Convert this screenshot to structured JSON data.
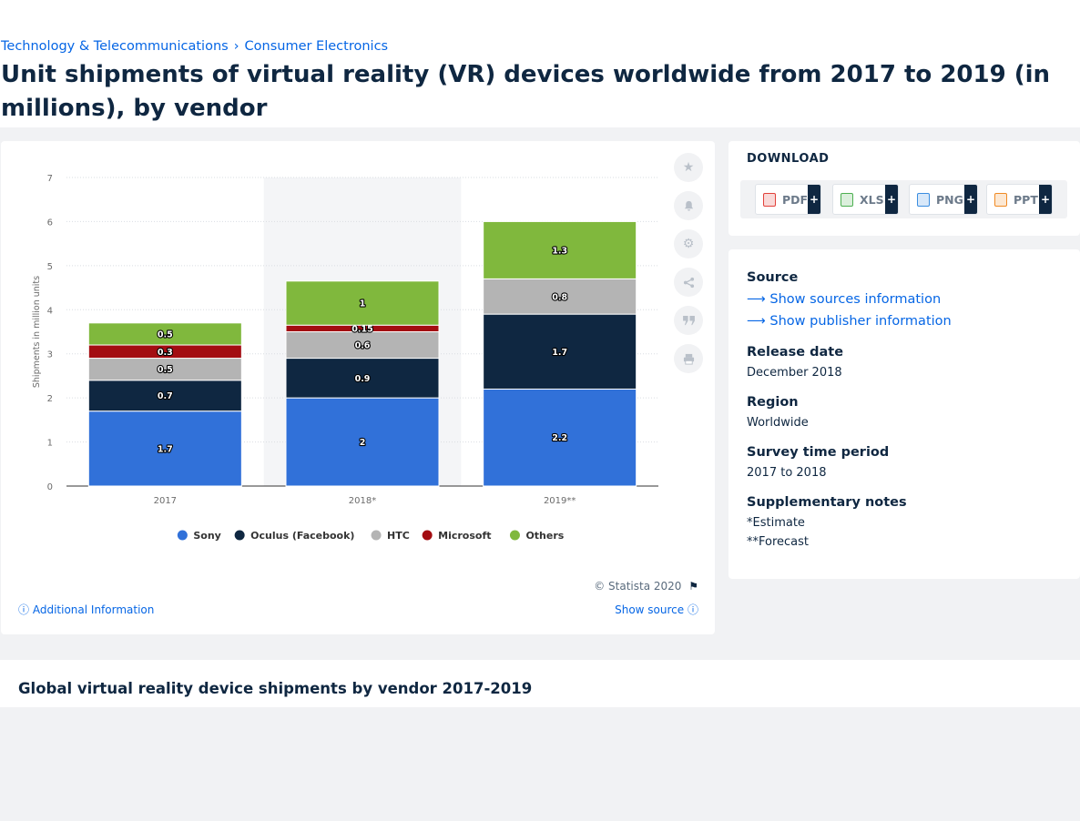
{
  "breadcrumb": [
    "Technology & Telecommunications",
    "Consumer Electronics"
  ],
  "page_title": "Unit shipments of virtual reality (VR) devices worldwide from 2017 to 2019 (in millions), by vendor",
  "chart_data": {
    "type": "bar",
    "stacked": true,
    "categories": [
      "2017",
      "2018*",
      "2019**"
    ],
    "ylabel": "Shipments in million units",
    "ylim": [
      0,
      7
    ],
    "yticks": [
      0,
      1,
      2,
      3,
      4,
      5,
      6,
      7
    ],
    "legend_position": "bottom",
    "highlighted_category": "2018*",
    "series": [
      {
        "name": "Sony",
        "color": "#3171d9",
        "values": [
          1.7,
          2,
          2.2
        ],
        "labels": [
          "1.7",
          "2",
          "2.2"
        ]
      },
      {
        "name": "Oculus (Facebook)",
        "color": "#0f2741",
        "values": [
          0.7,
          0.9,
          1.7
        ],
        "labels": [
          "0.7",
          "0.9",
          "1.7"
        ]
      },
      {
        "name": "HTC",
        "color": "#b4b4b4",
        "values": [
          0.5,
          0.6,
          0.8
        ],
        "labels": [
          "0.5",
          "0.6",
          "0.8"
        ]
      },
      {
        "name": "Microsoft",
        "color": "#a30d12",
        "values": [
          0.3,
          0.15,
          0
        ],
        "labels": [
          "0.3",
          "0.15",
          ""
        ]
      },
      {
        "name": "Others",
        "color": "#80b83d",
        "values": [
          0.5,
          1,
          1.3
        ],
        "labels": [
          "0.5",
          "1",
          "1.3"
        ]
      }
    ]
  },
  "chart_footer": {
    "copyright": "© Statista 2020",
    "additional_info": "Additional Information",
    "show_source": "Show source"
  },
  "download": {
    "title": "DOWNLOAD",
    "buttons": [
      {
        "label": "PDF",
        "color": "#e2413a"
      },
      {
        "label": "XLS",
        "color": "#4caf50"
      },
      {
        "label": "PNG",
        "color": "#3a8de0"
      },
      {
        "label": "PPT",
        "color": "#f08a24"
      }
    ],
    "plus": "+"
  },
  "info": {
    "source_label": "Source",
    "show_sources": "Show sources information",
    "show_publisher": "Show publisher information",
    "release_label": "Release date",
    "release_value": "December 2018",
    "region_label": "Region",
    "region_value": "Worldwide",
    "survey_label": "Survey time period",
    "survey_value": "2017 to 2018",
    "notes_label": "Supplementary notes",
    "notes": [
      "*Estimate",
      "**Forecast"
    ]
  },
  "bottom_title": "Global virtual reality device shipments by vendor 2017-2019"
}
